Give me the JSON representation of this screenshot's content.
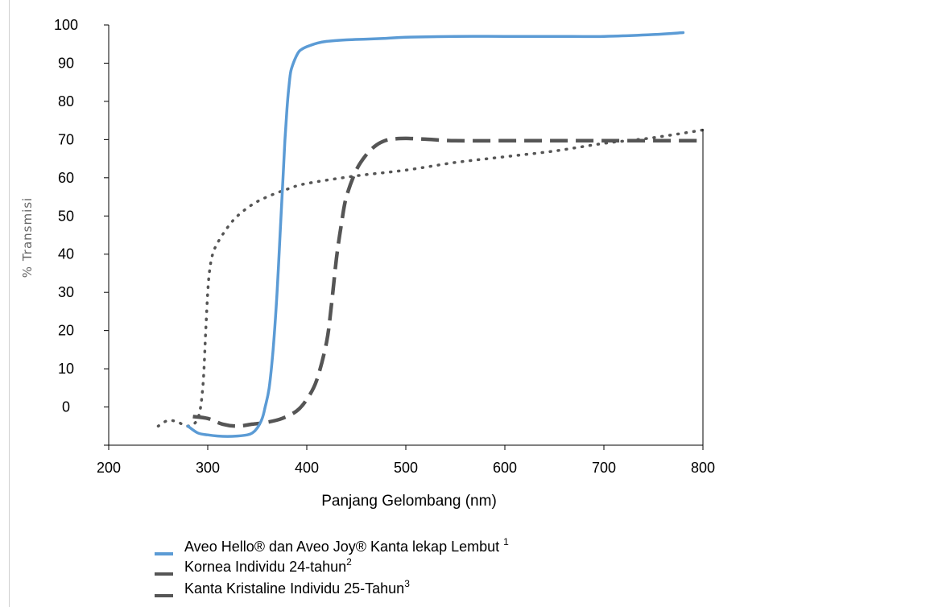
{
  "chart_data": {
    "type": "line",
    "xlabel": "Panjang Gelombang (nm)",
    "ylabel": "% Transmisi",
    "xlim": [
      200,
      800
    ],
    "ylim": [
      -10,
      100
    ],
    "x_ticks": [
      200,
      300,
      400,
      500,
      600,
      700,
      800
    ],
    "y_ticks": [
      0,
      10,
      20,
      30,
      40,
      50,
      60,
      70,
      80,
      90,
      100
    ],
    "grid": false,
    "legend_placement": "bottom",
    "series": [
      {
        "name": "Aveo Hello® dan Aveo Joy® Kanta lekap Lembut",
        "superscript": "1",
        "style": "solid",
        "color": "#5b9bd5",
        "x": [
          280,
          290,
          300,
          310,
          320,
          330,
          340,
          345,
          350,
          355,
          358,
          362,
          366,
          370,
          373,
          376,
          378,
          380,
          382,
          384,
          388,
          392,
          396,
          400,
          410,
          420,
          440,
          460,
          480,
          500,
          550,
          600,
          650,
          700,
          750,
          780
        ],
        "y": [
          -5,
          -6.8,
          -7.3,
          -7.6,
          -7.7,
          -7.6,
          -7.3,
          -6.8,
          -5.5,
          -3,
          0,
          5,
          15,
          30,
          45,
          60,
          70,
          78,
          84,
          88,
          91,
          93,
          93.8,
          94.3,
          95.2,
          95.7,
          96.1,
          96.3,
          96.5,
          96.8,
          97,
          97,
          97,
          97,
          97.5,
          98
        ]
      },
      {
        "name": "Kornea Individu 24-tahun",
        "superscript": "2",
        "style": "dashed",
        "color": "#555555",
        "x": [
          285,
          300,
          315,
          330,
          345,
          360,
          375,
          390,
          400,
          410,
          420,
          425,
          430,
          435,
          440,
          450,
          460,
          470,
          480,
          490,
          500,
          520,
          550,
          600,
          650,
          700,
          750,
          800
        ],
        "y": [
          -2.5,
          -3,
          -4.5,
          -5,
          -4.5,
          -4,
          -3,
          -1,
          2,
          7,
          17,
          27,
          39,
          48,
          55,
          62,
          66,
          68.5,
          69.8,
          70.2,
          70.3,
          70.1,
          69.7,
          69.7,
          69.7,
          69.7,
          69.7,
          69.7
        ]
      },
      {
        "name": "Kanta Kristaline Individu 25-Tahun",
        "superscript": "3",
        "style": "dotted",
        "color": "#555555",
        "x": [
          250,
          260,
          270,
          280,
          290,
          295,
          298,
          300,
          302,
          305,
          310,
          320,
          330,
          345,
          360,
          380,
          400,
          450,
          500,
          550,
          600,
          650,
          700,
          750,
          800
        ],
        "y": [
          -5,
          -3.5,
          -4,
          -5,
          -3,
          5,
          20,
          30,
          36,
          40,
          43,
          47,
          50,
          53,
          55,
          57,
          58.5,
          60.5,
          62,
          64,
          65.5,
          67,
          69,
          70.5,
          72.5
        ]
      }
    ]
  }
}
